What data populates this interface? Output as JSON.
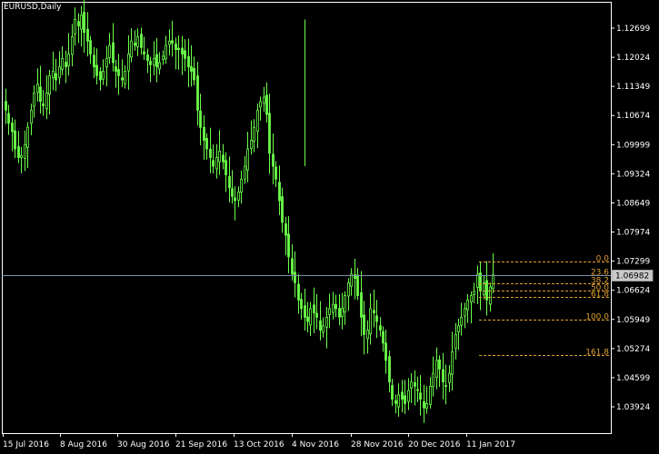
{
  "window": {
    "title": "EURUSD,Daily"
  },
  "colors": {
    "background": "#000000",
    "candles": "#6CFF4A",
    "axis": "#FFFFFF",
    "fib": "#E0A030",
    "current_price_line": "#7D8FA8"
  },
  "chart_data": {
    "type": "candlestick",
    "symbol": "EURUSD",
    "timeframe": "Daily",
    "y_ticks": [
      "1.12699",
      "1.12024",
      "1.11349",
      "1.10674",
      "1.09999",
      "1.09324",
      "1.08649",
      "1.07974",
      "1.07299",
      "1.06624",
      "1.05949",
      "1.05274",
      "1.04599",
      "1.03924"
    ],
    "y_range": [
      1.03549,
      1.13299
    ],
    "x_ticks": [
      "15 Jul 2016",
      "8 Aug 2016",
      "30 Aug 2016",
      "21 Sep 2016",
      "13 Oct 2016",
      "4 Nov 2016",
      "28 Nov 2016",
      "20 Dec 2016",
      "11 Jan 2017"
    ],
    "current_price": "1.06982",
    "fibonacci": {
      "high": 1.07299,
      "low": 1.05949,
      "levels": [
        {
          "label": "0.0",
          "ratio": 0.0
        },
        {
          "label": "23.6",
          "ratio": 0.236
        },
        {
          "label": "38.2",
          "ratio": 0.382
        },
        {
          "label": "50.0",
          "ratio": 0.5
        },
        {
          "label": "61.8",
          "ratio": 0.618
        },
        {
          "label": "100.0",
          "ratio": 1.0
        },
        {
          "label": "161.8",
          "ratio": 1.618
        }
      ]
    },
    "close_path": [
      1.108,
      1.105,
      1.103,
      1.099,
      1.097,
      1.0975,
      1.1,
      1.104,
      1.108,
      1.112,
      1.114,
      1.11,
      1.109,
      1.112,
      1.116,
      1.117,
      1.115,
      1.118,
      1.12,
      1.118,
      1.121,
      1.125,
      1.129,
      1.1275,
      1.13,
      1.126,
      1.124,
      1.121,
      1.118,
      1.116,
      1.115,
      1.117,
      1.12,
      1.123,
      1.119,
      1.117,
      1.116,
      1.115,
      1.117,
      1.121,
      1.124,
      1.123,
      1.125,
      1.1225,
      1.121,
      1.1195,
      1.1185,
      1.12,
      1.118,
      1.119,
      1.1205,
      1.123,
      1.124,
      1.1235,
      1.122,
      1.122,
      1.121,
      1.12,
      1.118,
      1.117,
      1.115,
      1.108,
      1.104,
      1.101,
      1.099,
      1.097,
      1.095,
      1.097,
      1.0985,
      1.096,
      1.093,
      1.09,
      1.088,
      1.087,
      1.089,
      1.092,
      1.095,
      1.099,
      1.101,
      1.104,
      1.108,
      1.11,
      1.111,
      1.107,
      1.098,
      1.095,
      1.092,
      1.087,
      1.082,
      1.079,
      1.074,
      1.07,
      1.068,
      1.064,
      1.062,
      1.06,
      1.059,
      1.062,
      1.061,
      1.06,
      1.057,
      1.058,
      1.06,
      1.062,
      1.063,
      1.062,
      1.06,
      1.062,
      1.065,
      1.068,
      1.07,
      1.069,
      1.065,
      1.06,
      1.056,
      1.057,
      1.062,
      1.061,
      1.059,
      1.057,
      1.054,
      1.05,
      1.045,
      1.041,
      1.04,
      1.042,
      1.041,
      1.04,
      1.043,
      1.045,
      1.044,
      1.043,
      1.041,
      1.039,
      1.04,
      1.044,
      1.047,
      1.05,
      1.048,
      1.045,
      1.044,
      1.047,
      1.052,
      1.056,
      1.058,
      1.06,
      1.062,
      1.064,
      1.065,
      1.066,
      1.07,
      1.066,
      1.068,
      1.064,
      1.067,
      1.0698
    ]
  }
}
